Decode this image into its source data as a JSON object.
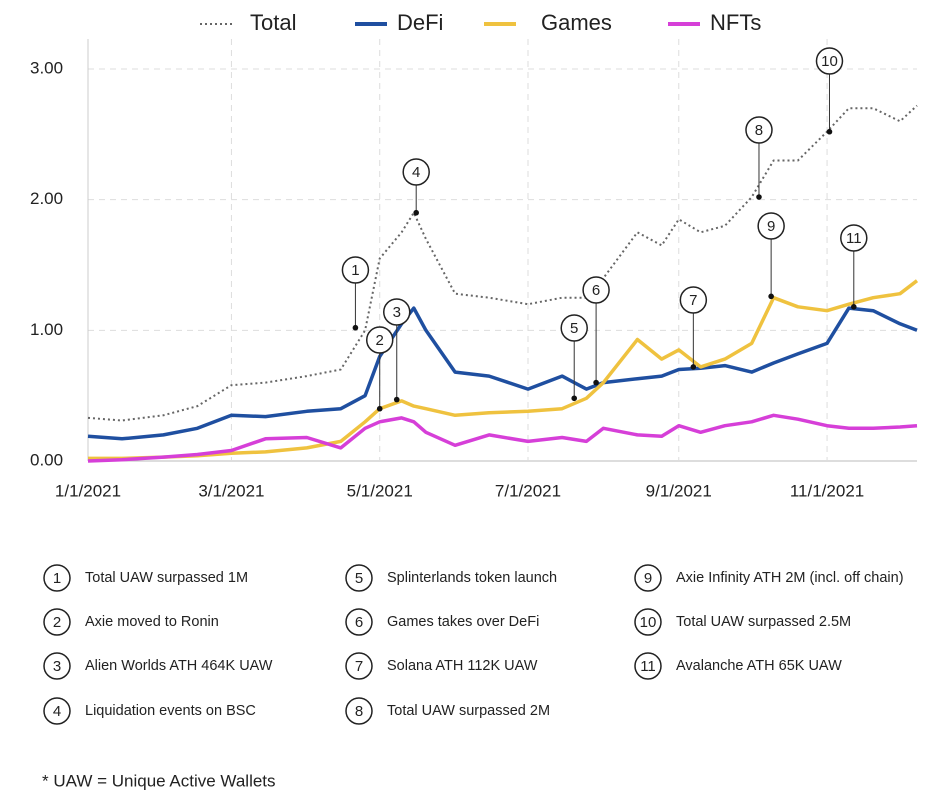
{
  "chart_data": {
    "type": "line",
    "legend": "top",
    "grid": true,
    "x": [
      "2021-01-01",
      "2021-01-15",
      "2021-02-01",
      "2021-02-15",
      "2021-03-01",
      "2021-03-15",
      "2021-04-01",
      "2021-04-15",
      "2021-04-25",
      "2021-05-01",
      "2021-05-10",
      "2021-05-15",
      "2021-05-20",
      "2021-06-01",
      "2021-06-15",
      "2021-07-01",
      "2021-07-15",
      "2021-07-25",
      "2021-08-01",
      "2021-08-15",
      "2021-08-25",
      "2021-09-01",
      "2021-09-10",
      "2021-09-20",
      "2021-10-01",
      "2021-10-10",
      "2021-10-20",
      "2021-11-01",
      "2021-11-10",
      "2021-11-20",
      "2021-12-01",
      "2021-12-08"
    ],
    "xlim": [
      "2021-01-01",
      "2021-12-08"
    ],
    "xticks": [
      {
        "value": "2021-01-01",
        "label": "1/1/2021"
      },
      {
        "value": "2021-03-01",
        "label": "3/1/2021"
      },
      {
        "value": "2021-05-01",
        "label": "5/1/2021"
      },
      {
        "value": "2021-07-01",
        "label": "7/1/2021"
      },
      {
        "value": "2021-09-01",
        "label": "9/1/2021"
      },
      {
        "value": "2021-11-01",
        "label": "11/1/2021"
      }
    ],
    "ylim": [
      0,
      3
    ],
    "yticks": [
      {
        "value": 0,
        "label": "0.00"
      },
      {
        "value": 1,
        "label": "1.00"
      },
      {
        "value": 2,
        "label": "2.00"
      },
      {
        "value": 3,
        "label": "3.00"
      }
    ],
    "series": [
      {
        "name": "Total",
        "color": "#666666",
        "line_style": "dotted",
        "values": [
          0.33,
          0.31,
          0.35,
          0.42,
          0.58,
          0.6,
          0.65,
          0.7,
          1.0,
          1.55,
          1.75,
          1.9,
          1.7,
          1.28,
          1.25,
          1.2,
          1.25,
          1.25,
          1.4,
          1.75,
          1.65,
          1.85,
          1.75,
          1.8,
          2.02,
          2.3,
          2.3,
          2.52,
          2.7,
          2.7,
          2.6,
          2.72
        ]
      },
      {
        "name": "DeFi",
        "color": "#1f4fa0",
        "line_style": "solid",
        "values": [
          0.19,
          0.17,
          0.2,
          0.25,
          0.35,
          0.34,
          0.38,
          0.4,
          0.5,
          0.8,
          1.05,
          1.17,
          1.0,
          0.68,
          0.65,
          0.55,
          0.65,
          0.55,
          0.6,
          0.63,
          0.65,
          0.7,
          0.71,
          0.73,
          0.68,
          0.75,
          0.82,
          0.9,
          1.17,
          1.15,
          1.05,
          1.0
        ]
      },
      {
        "name": "Games",
        "color": "#efc23f",
        "line_style": "solid",
        "values": [
          0.02,
          0.02,
          0.03,
          0.04,
          0.06,
          0.07,
          0.1,
          0.15,
          0.3,
          0.4,
          0.46,
          0.42,
          0.4,
          0.35,
          0.37,
          0.38,
          0.4,
          0.48,
          0.6,
          0.93,
          0.78,
          0.85,
          0.72,
          0.78,
          0.9,
          1.25,
          1.18,
          1.15,
          1.2,
          1.25,
          1.28,
          1.38
        ]
      },
      {
        "name": "NFTs",
        "color": "#d63fd8",
        "line_style": "solid",
        "values": [
          0.0,
          0.01,
          0.03,
          0.05,
          0.08,
          0.17,
          0.18,
          0.1,
          0.25,
          0.3,
          0.33,
          0.3,
          0.22,
          0.12,
          0.2,
          0.15,
          0.18,
          0.15,
          0.25,
          0.2,
          0.19,
          0.27,
          0.22,
          0.27,
          0.3,
          0.35,
          0.32,
          0.27,
          0.25,
          0.25,
          0.26,
          0.27
        ]
      }
    ],
    "annotations": [
      {
        "label": "1",
        "x": "2021-04-21",
        "y": 1.02,
        "text": "Total UAW surpassed 1M"
      },
      {
        "label": "2",
        "x": "2021-05-01",
        "y": 0.4,
        "text": "Axie moved to Ronin"
      },
      {
        "label": "3",
        "x": "2021-05-08",
        "y": 0.47,
        "text": "Alien Worlds ATH 464K UAW"
      },
      {
        "label": "4",
        "x": "2021-05-16",
        "y": 1.9,
        "text": "Liquidation events on BSC"
      },
      {
        "label": "5",
        "x": "2021-07-20",
        "y": 0.48,
        "text": "Splinterlands token launch"
      },
      {
        "label": "6",
        "x": "2021-07-29",
        "y": 0.6,
        "text": "Games takes over DeFi"
      },
      {
        "label": "7",
        "x": "2021-09-07",
        "y": 0.72,
        "text": "Solana ATH 112K UAW"
      },
      {
        "label": "8",
        "x": "2021-10-04",
        "y": 2.02,
        "text": "Total UAW surpassed 2M"
      },
      {
        "label": "9",
        "x": "2021-10-09",
        "y": 1.26,
        "text": "Axie Infinity ATH 2M (incl. off chain)"
      },
      {
        "label": "10",
        "x": "2021-11-02",
        "y": 2.52,
        "text": "Total UAW surpassed 2.5M"
      },
      {
        "label": "11",
        "x": "2021-11-12",
        "y": 1.18,
        "text": "Avalanche ATH 65K UAW"
      }
    ],
    "footnote": "* UAW = Unique Active Wallets"
  }
}
